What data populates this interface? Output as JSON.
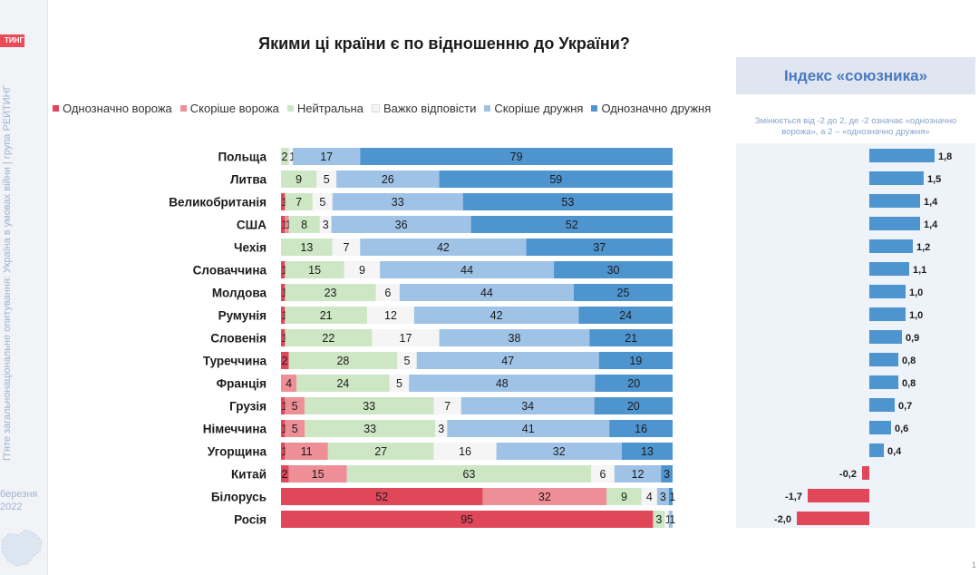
{
  "sidebar": {
    "brand_fragment": "ТИНГ",
    "vertical_caption": "П'яте загальнонаціональне опитування: Україна в умовах війни | група РЕЙТИНГ",
    "date_line1": "березня",
    "date_line2": "2022"
  },
  "page_number": "1",
  "chart_data": [
    {
      "type": "bar",
      "orientation": "horizontal",
      "stacked": true,
      "normalized_percent": true,
      "title": "Якими ці країни є по відношенню до України?",
      "legend_position": "top",
      "categories": [
        "Польща",
        "Литва",
        "Великобританія",
        "США",
        "Чехія",
        "Словаччина",
        "Молдова",
        "Румунія",
        "Словенія",
        "Туреччина",
        "Франція",
        "Грузія",
        "Німеччина",
        "Угорщина",
        "Китай",
        "Білорусь",
        "Росія"
      ],
      "series": [
        {
          "name": "Однозначно ворожа",
          "color": "#e0485a",
          "values": [
            0,
            0,
            1,
            1,
            0,
            1,
            1,
            1,
            1,
            2,
            0,
            1,
            1,
            1,
            2,
            52,
            95
          ]
        },
        {
          "name": "Скоріше ворожа",
          "color": "#ee8e96",
          "values": [
            0,
            0,
            0,
            1,
            0,
            0,
            0,
            0,
            0,
            0,
            4,
            5,
            5,
            11,
            15,
            32,
            0
          ]
        },
        {
          "name": "Нейтральна",
          "color": "#cde6c4",
          "values": [
            2,
            9,
            7,
            8,
            13,
            15,
            23,
            21,
            22,
            28,
            24,
            33,
            33,
            27,
            63,
            9,
            3
          ]
        },
        {
          "name": "Важко відповісти",
          "color": "#f5f5f5",
          "values": [
            1,
            5,
            5,
            3,
            7,
            9,
            6,
            12,
            17,
            5,
            5,
            7,
            3,
            16,
            6,
            4,
            1
          ]
        },
        {
          "name": "Скоріше дружня",
          "color": "#9fc3e6",
          "values": [
            17,
            26,
            33,
            36,
            42,
            44,
            44,
            42,
            38,
            47,
            48,
            34,
            41,
            32,
            12,
            3,
            1
          ]
        },
        {
          "name": "Однозначно дружня",
          "color": "#4e94cf",
          "values": [
            79,
            59,
            53,
            52,
            37,
            30,
            25,
            24,
            21,
            19,
            20,
            20,
            16,
            13,
            3,
            1,
            0
          ]
        }
      ]
    },
    {
      "type": "bar",
      "orientation": "horizontal",
      "title": "Індекс «союзника»",
      "subtitle": "Змінюється від -2 до 2, де -2 означає «однозначно ворожа», а 2 – «однозначно дружня»",
      "xlim": [
        -2,
        2
      ],
      "positive_color": "#4e94cf",
      "negative_color": "#e0485a",
      "categories": [
        "Польща",
        "Литва",
        "Великобританія",
        "США",
        "Чехія",
        "Словаччина",
        "Молдова",
        "Румунія",
        "Словенія",
        "Туреччина",
        "Франція",
        "Грузія",
        "Німеччина",
        "Угорщина",
        "Китай",
        "Білорусь",
        "Росія"
      ],
      "values": [
        1.8,
        1.5,
        1.4,
        1.4,
        1.2,
        1.1,
        1.0,
        1.0,
        0.9,
        0.8,
        0.8,
        0.7,
        0.6,
        0.4,
        -0.2,
        -1.7,
        -2.0
      ],
      "labels": [
        "1,8",
        "1,5",
        "1,4",
        "1,4",
        "1,2",
        "1,1",
        "1,0",
        "1,0",
        "0,9",
        "0,8",
        "0,8",
        "0,7",
        "0,6",
        "0,4",
        "-0,2",
        "-1,7",
        "-2,0"
      ]
    }
  ]
}
